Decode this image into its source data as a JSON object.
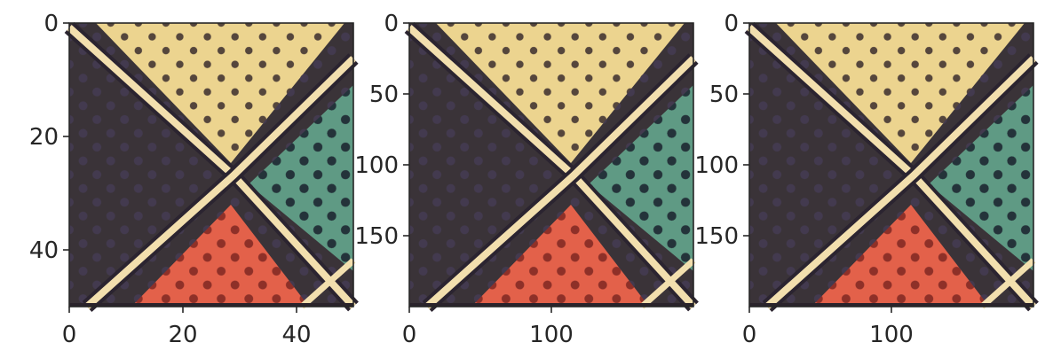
{
  "chart_data": [
    {
      "type": "heatmap",
      "image": "checkerboard-crossing-panel-original",
      "xlim": [
        0,
        50
      ],
      "ylim": [
        50,
        0
      ],
      "xticks": [
        0,
        20,
        40
      ],
      "yticks": [
        0,
        20,
        40
      ],
      "xtick_labels": [
        "0",
        "20",
        "40"
      ],
      "ytick_labels": [
        "0",
        "20",
        "40"
      ]
    },
    {
      "type": "heatmap",
      "image": "checkerboard-crossing-panel-upscaled",
      "xlim": [
        0,
        200
      ],
      "ylim": [
        200,
        0
      ],
      "xticks": [
        0,
        100
      ],
      "yticks": [
        0,
        50,
        100,
        150
      ],
      "xtick_labels": [
        "0",
        "100"
      ],
      "ytick_labels": [
        "0",
        "50",
        "100",
        "150"
      ]
    },
    {
      "type": "heatmap",
      "image": "checkerboard-crossing-panel-upscaled",
      "xlim": [
        0,
        200
      ],
      "ylim": [
        200,
        0
      ],
      "xticks": [
        0,
        100
      ],
      "yticks": [
        0,
        50,
        100,
        150
      ],
      "xtick_labels": [
        "0",
        "100"
      ],
      "ytick_labels": [
        "0",
        "50",
        "100",
        "150"
      ]
    }
  ],
  "colors": {
    "dark_region": "#3a3338",
    "yellow_region": "#ecd48f",
    "green_region": "#3d6a60",
    "red_region": "#d9573e",
    "stripe": "#f2dfae",
    "dots": "#3b2d2e"
  }
}
